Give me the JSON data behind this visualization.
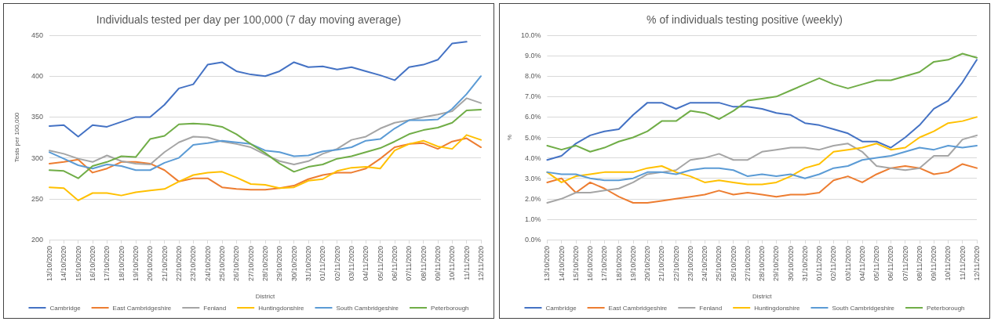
{
  "chart_data": [
    {
      "type": "line",
      "title": "Individuals tested per day per 100,000 (7 day moving average)",
      "xlabel": "District",
      "ylabel": "Tests per 100,000",
      "categories": [
        "13/10/2020",
        "14/10/2020",
        "15/10/2020",
        "16/10/2020",
        "17/10/2020",
        "18/10/2020",
        "19/10/2020",
        "20/10/2020",
        "21/10/2020",
        "22/10/2020",
        "23/10/2020",
        "24/10/2020",
        "25/10/2020",
        "26/10/2020",
        "27/10/2020",
        "28/10/2020",
        "29/10/2020",
        "30/10/2020",
        "31/10/2020",
        "01/11/2020",
        "02/11/2020",
        "03/11/2020",
        "04/11/2020",
        "05/11/2020",
        "06/11/2020",
        "07/11/2020",
        "08/11/2020",
        "09/11/2020",
        "10/11/2020",
        "11/11/2020",
        "12/11/2020"
      ],
      "series": [
        {
          "name": "Cambridge",
          "color": "#4472c4",
          "values": [
            339,
            340,
            326,
            340,
            338,
            344,
            350,
            350,
            365,
            385,
            390,
            414,
            417,
            406,
            402,
            400,
            406,
            417,
            411,
            412,
            408,
            411,
            406,
            401,
            395,
            411,
            414,
            420,
            440,
            442,
            null
          ]
        },
        {
          "name": "East Cambridgeshire",
          "color": "#ed7d31",
          "values": [
            293,
            295,
            298,
            282,
            287,
            295,
            295,
            293,
            285,
            271,
            275,
            275,
            264,
            262,
            261,
            261,
            263,
            266,
            274,
            279,
            282,
            282,
            287,
            299,
            313,
            317,
            318,
            311,
            320,
            324,
            313
          ]
        },
        {
          "name": "Fenland",
          "color": "#a5a5a5",
          "values": [
            309,
            305,
            299,
            295,
            303,
            296,
            293,
            292,
            307,
            319,
            326,
            325,
            320,
            317,
            313,
            304,
            296,
            292,
            296,
            305,
            311,
            322,
            326,
            336,
            343,
            346,
            350,
            353,
            357,
            373,
            367
          ]
        },
        {
          "name": "Huntingdonshire",
          "color": "#ffc000",
          "values": [
            264,
            263,
            248,
            257,
            257,
            254,
            258,
            260,
            262,
            271,
            279,
            282,
            283,
            276,
            268,
            267,
            263,
            264,
            272,
            274,
            284,
            288,
            289,
            287,
            309,
            317,
            321,
            314,
            311,
            328,
            322
          ]
        },
        {
          "name": "South Cambridgeshire",
          "color": "#5b9bd5",
          "values": [
            307,
            299,
            291,
            287,
            292,
            290,
            285,
            285,
            294,
            300,
            316,
            318,
            321,
            319,
            317,
            309,
            307,
            302,
            303,
            308,
            310,
            313,
            321,
            323,
            336,
            346,
            346,
            347,
            360,
            378,
            400
          ]
        },
        {
          "name": "Peterborough",
          "color": "#70ad47",
          "values": [
            285,
            284,
            275,
            290,
            295,
            302,
            301,
            323,
            327,
            341,
            342,
            341,
            338,
            329,
            317,
            306,
            293,
            283,
            289,
            292,
            299,
            302,
            307,
            312,
            320,
            329,
            334,
            337,
            343,
            358,
            359
          ]
        }
      ],
      "ylim": [
        200,
        450
      ],
      "yticks": [
        200,
        250,
        300,
        350,
        400,
        450
      ],
      "grid": "y",
      "legend": "bottom",
      "marker": "none",
      "line_style": "solid"
    },
    {
      "type": "line",
      "title": "% of individuals testing positive (weekly)",
      "xlabel": "District",
      "ylabel": "%",
      "categories": [
        "13/10/2020",
        "14/10/2020",
        "15/10/2020",
        "16/10/2020",
        "17/10/2020",
        "18/10/2020",
        "19/10/2020",
        "20/10/2020",
        "21/10/2020",
        "22/10/2020",
        "23/10/2020",
        "24/10/2020",
        "25/10/2020",
        "26/10/2020",
        "27/10/2020",
        "28/10/2020",
        "29/10/2020",
        "30/10/2020",
        "31/10/2020",
        "01/11/2020",
        "02/11/2020",
        "03/11/2020",
        "04/11/2020",
        "05/11/2020",
        "06/11/2020",
        "07/11/2020",
        "08/11/2020",
        "09/11/2020",
        "10/11/2020",
        "11/11/2020",
        "12/11/2020"
      ],
      "series": [
        {
          "name": "Cambridge",
          "color": "#4472c4",
          "values": [
            3.9,
            4.1,
            4.7,
            5.1,
            5.3,
            5.4,
            6.1,
            6.7,
            6.7,
            6.4,
            6.7,
            6.7,
            6.7,
            6.5,
            6.5,
            6.4,
            6.2,
            6.1,
            5.7,
            5.6,
            5.4,
            5.2,
            4.8,
            4.8,
            4.5,
            5.0,
            5.6,
            6.4,
            6.8,
            7.7,
            8.8
          ]
        },
        {
          "name": "East Cambridgeshire",
          "color": "#ed7d31",
          "values": [
            2.8,
            3.0,
            2.3,
            2.8,
            2.5,
            2.1,
            1.8,
            1.8,
            1.9,
            2.0,
            2.1,
            2.2,
            2.4,
            2.2,
            2.3,
            2.2,
            2.1,
            2.2,
            2.2,
            2.3,
            2.9,
            3.1,
            2.8,
            3.2,
            3.5,
            3.6,
            3.5,
            3.2,
            3.3,
            3.7,
            3.5
          ]
        },
        {
          "name": "Fenland",
          "color": "#a5a5a5",
          "values": [
            1.8,
            2.0,
            2.3,
            2.3,
            2.4,
            2.5,
            2.8,
            3.2,
            3.3,
            3.4,
            3.9,
            4.0,
            4.2,
            3.9,
            3.9,
            4.3,
            4.4,
            4.5,
            4.5,
            4.4,
            4.6,
            4.7,
            4.3,
            3.6,
            3.5,
            3.4,
            3.5,
            4.1,
            4.1,
            4.9,
            5.1
          ]
        },
        {
          "name": "Huntingdonshire",
          "color": "#ffc000",
          "values": [
            3.3,
            2.8,
            3.1,
            3.2,
            3.3,
            3.3,
            3.3,
            3.5,
            3.6,
            3.3,
            3.1,
            2.8,
            2.9,
            2.8,
            2.7,
            2.7,
            2.8,
            3.1,
            3.5,
            3.7,
            4.3,
            4.4,
            4.5,
            4.7,
            4.4,
            4.5,
            5.0,
            5.3,
            5.7,
            5.8,
            6.0
          ]
        },
        {
          "name": "South Cambridgeshire",
          "color": "#5b9bd5",
          "values": [
            3.3,
            3.2,
            3.2,
            3.0,
            2.9,
            2.9,
            3.0,
            3.3,
            3.3,
            3.2,
            3.4,
            3.5,
            3.5,
            3.4,
            3.1,
            3.2,
            3.1,
            3.2,
            3.0,
            3.2,
            3.5,
            3.6,
            3.9,
            4.0,
            4.1,
            4.3,
            4.5,
            4.4,
            4.6,
            4.5,
            4.6
          ]
        },
        {
          "name": "Peterborough",
          "color": "#70ad47",
          "values": [
            4.6,
            4.4,
            4.6,
            4.3,
            4.5,
            4.8,
            5.0,
            5.3,
            5.8,
            5.8,
            6.3,
            6.2,
            5.9,
            6.3,
            6.8,
            6.9,
            7.0,
            7.3,
            7.6,
            7.9,
            7.6,
            7.4,
            7.6,
            7.8,
            7.8,
            8.0,
            8.2,
            8.7,
            8.8,
            9.1,
            8.9
          ]
        }
      ],
      "ylim": [
        0,
        10
      ],
      "yticks": [
        {
          "value": 0,
          "label": "0.0%"
        },
        {
          "value": 1,
          "label": "1.0%"
        },
        {
          "value": 2,
          "label": "2.0%"
        },
        {
          "value": 3,
          "label": "3.0%"
        },
        {
          "value": 4,
          "label": "4.0%"
        },
        {
          "value": 5,
          "label": "5.0%"
        },
        {
          "value": 6,
          "label": "6.0%"
        },
        {
          "value": 7,
          "label": "7.0%"
        },
        {
          "value": 8,
          "label": "8.0%"
        },
        {
          "value": 9,
          "label": "9.0%"
        },
        {
          "value": 10,
          "label": "10.0%"
        }
      ],
      "grid": "y",
      "legend": "bottom",
      "marker": "none",
      "line_style": "solid"
    }
  ]
}
